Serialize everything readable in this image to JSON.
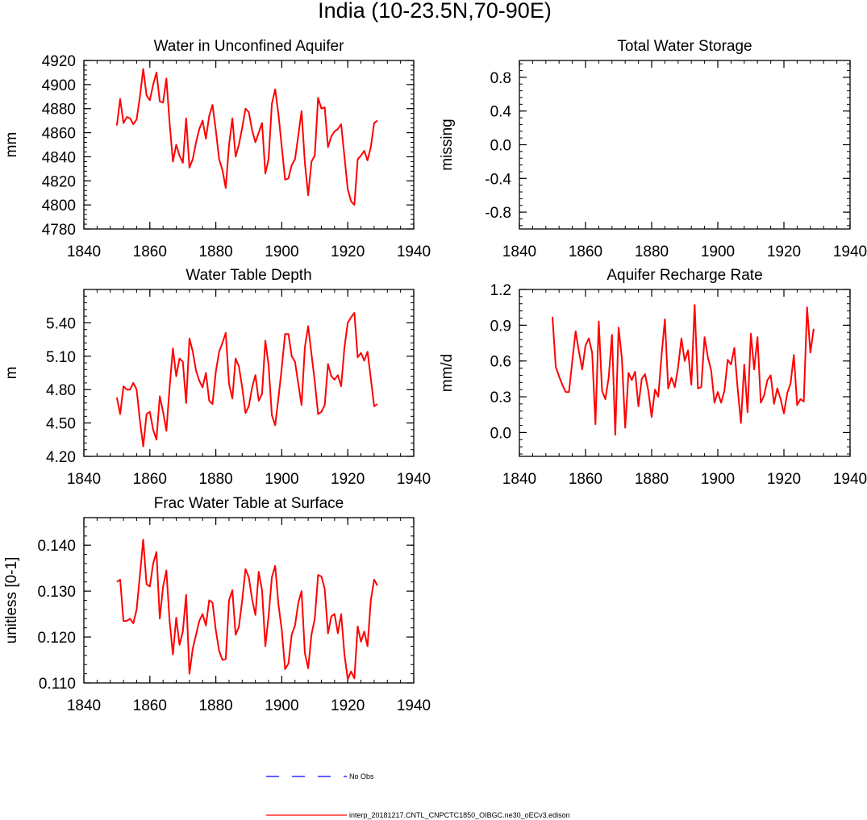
{
  "figure": {
    "title": "India (10-23.5N,70-90E)",
    "line_color": "#ff0000",
    "obs_color": "#0000ff"
  },
  "legend": {
    "obs_label": "No Obs",
    "model_label": "interp_20181217.CNTL_CNPCTC1850_OIBGC.ne30_oECv3.edison"
  },
  "chart_data": [
    {
      "type": "line",
      "title": "Water in Unconfined Aquifer",
      "xlabel": "",
      "ylabel": "mm",
      "xlim": [
        1840,
        1940
      ],
      "ylim": [
        4780,
        4920
      ],
      "xticks": [
        1840,
        1860,
        1880,
        1900,
        1920,
        1940
      ],
      "yticks": [
        4780,
        4800,
        4820,
        4840,
        4860,
        4880,
        4900,
        4920
      ],
      "ytick_labels": [
        "4780",
        "4800",
        "4820",
        "4840",
        "4860",
        "4880",
        "4900",
        "4920"
      ],
      "series": [
        {
          "name": "interp_20181217.CNTL_CNPCTC1850_OIBGC.ne30_oECv3.edison",
          "x_start": 1850,
          "x_step": 1,
          "values": [
            4866,
            4888,
            4868,
            4873,
            4872,
            4867,
            4871,
            4890,
            4913,
            4891,
            4887,
            4900,
            4910,
            4886,
            4885,
            4905,
            4868,
            4836,
            4850,
            4841,
            4835,
            4872,
            4831,
            4838,
            4852,
            4863,
            4870,
            4855,
            4874,
            4883,
            4862,
            4838,
            4829,
            4814,
            4850,
            4872,
            4840,
            4850,
            4864,
            4880,
            4877,
            4862,
            4852,
            4860,
            4868,
            4826,
            4838,
            4884,
            4896,
            4875,
            4848,
            4821,
            4822,
            4833,
            4838,
            4858,
            4878,
            4835,
            4808,
            4836,
            4841,
            4889,
            4880,
            4881,
            4848,
            4857,
            4861,
            4863,
            4867,
            4840,
            4813,
            4803,
            4800,
            4838,
            4841,
            4845,
            4837,
            4848,
            4868,
            4870
          ]
        }
      ]
    },
    {
      "type": "line",
      "title": "Total Water Storage",
      "xlabel": "",
      "ylabel": "missing",
      "xlim": [
        1840,
        1940
      ],
      "ylim": [
        -1,
        1
      ],
      "xticks": [
        1840,
        1860,
        1880,
        1900,
        1920,
        1940
      ],
      "yticks": [
        -0.8,
        -0.4,
        0.0,
        0.4,
        0.8
      ],
      "ytick_labels": [
        "-0.8",
        "-0.4",
        "0.0",
        "0.4",
        "0.8"
      ],
      "series": []
    },
    {
      "type": "line",
      "title": "Water Table Depth",
      "xlabel": "",
      "ylabel": "m",
      "xlim": [
        1840,
        1940
      ],
      "ylim": [
        4.2,
        5.7
      ],
      "xticks": [
        1840,
        1860,
        1880,
        1900,
        1920,
        1940
      ],
      "yticks": [
        4.2,
        4.5,
        4.8,
        5.1,
        5.4
      ],
      "ytick_labels": [
        "4.20",
        "4.50",
        "4.80",
        "5.10",
        "5.40"
      ],
      "series": [
        {
          "name": "interp_20181217.CNTL_CNPCTC1850_OIBGC.ne30_oECv3.edison",
          "x_start": 1850,
          "x_step": 1,
          "values": [
            4.73,
            4.58,
            4.83,
            4.8,
            4.8,
            4.86,
            4.8,
            4.52,
            4.29,
            4.58,
            4.6,
            4.44,
            4.35,
            4.74,
            4.6,
            4.43,
            4.82,
            5.17,
            4.92,
            5.08,
            5.05,
            4.68,
            5.26,
            5.14,
            4.97,
            4.88,
            4.82,
            4.95,
            4.7,
            4.67,
            4.96,
            5.14,
            5.22,
            5.31,
            4.85,
            4.72,
            5.08,
            5.01,
            4.82,
            4.59,
            4.65,
            4.82,
            4.93,
            4.7,
            4.76,
            5.24,
            5.02,
            4.57,
            4.48,
            4.73,
            5.0,
            5.3,
            5.3,
            5.1,
            5.05,
            4.85,
            4.66,
            5.18,
            5.37,
            5.12,
            4.87,
            4.58,
            4.6,
            4.66,
            5.03,
            4.92,
            4.89,
            4.93,
            4.83,
            5.18,
            5.4,
            5.45,
            5.49,
            5.09,
            5.13,
            5.06,
            5.14,
            4.9,
            4.65,
            4.67
          ]
        }
      ]
    },
    {
      "type": "line",
      "title": "Aquifer Recharge Rate",
      "xlabel": "",
      "ylabel": "mm/d",
      "xlim": [
        1840,
        1940
      ],
      "ylim": [
        -0.2,
        1.2
      ],
      "xticks": [
        1840,
        1860,
        1880,
        1900,
        1920,
        1940
      ],
      "yticks": [
        0.0,
        0.3,
        0.6,
        0.9,
        1.2
      ],
      "ytick_labels": [
        "0.0",
        "0.3",
        "0.6",
        "0.9",
        "1.2"
      ],
      "series": [
        {
          "name": "interp_20181217.CNTL_CNPCTC1850_OIBGC.ne30_oECv3.edison",
          "x_start": 1850,
          "x_step": 1,
          "values": [
            0.97,
            0.55,
            0.47,
            0.4,
            0.34,
            0.34,
            0.6,
            0.85,
            0.68,
            0.53,
            0.73,
            0.79,
            0.67,
            0.07,
            0.93,
            0.35,
            0.28,
            0.46,
            0.82,
            -0.02,
            0.88,
            0.62,
            0.04,
            0.5,
            0.44,
            0.51,
            0.22,
            0.45,
            0.49,
            0.35,
            0.13,
            0.36,
            0.3,
            0.65,
            0.95,
            0.37,
            0.46,
            0.38,
            0.55,
            0.79,
            0.6,
            0.69,
            0.4,
            1.07,
            0.37,
            0.38,
            0.8,
            0.63,
            0.52,
            0.25,
            0.34,
            0.25,
            0.35,
            0.61,
            0.57,
            0.71,
            0.37,
            0.08,
            0.57,
            0.17,
            0.83,
            0.53,
            0.8,
            0.25,
            0.31,
            0.44,
            0.48,
            0.24,
            0.37,
            0.28,
            0.16,
            0.33,
            0.41,
            0.65,
            0.23,
            0.28,
            0.26,
            1.05,
            0.67,
            0.87
          ]
        }
      ]
    },
    {
      "type": "line",
      "title": "Frac Water Table at Surface",
      "xlabel": "",
      "ylabel": "unitless [0-1]",
      "xlim": [
        1840,
        1940
      ],
      "ylim": [
        0.11,
        0.146
      ],
      "xticks": [
        1840,
        1860,
        1880,
        1900,
        1920,
        1940
      ],
      "yticks": [
        0.11,
        0.12,
        0.13,
        0.14
      ],
      "ytick_labels": [
        "0.110",
        "0.120",
        "0.130",
        "0.140"
      ],
      "series": [
        {
          "name": "interp_20181217.CNTL_CNPCTC1850_OIBGC.ne30_oECv3.edison",
          "x_start": 1850,
          "x_step": 1,
          "values": [
            0.132,
            0.1325,
            0.1235,
            0.1235,
            0.124,
            0.123,
            0.126,
            0.1335,
            0.1412,
            0.1315,
            0.131,
            0.136,
            0.1385,
            0.124,
            0.131,
            0.1345,
            0.1235,
            0.1162,
            0.1242,
            0.1183,
            0.1212,
            0.1292,
            0.112,
            0.1175,
            0.1205,
            0.1235,
            0.125,
            0.1225,
            0.128,
            0.1275,
            0.1215,
            0.117,
            0.115,
            0.1152,
            0.128,
            0.1302,
            0.1205,
            0.1222,
            0.128,
            0.1348,
            0.133,
            0.1282,
            0.1248,
            0.1342,
            0.1302,
            0.118,
            0.1245,
            0.133,
            0.1355,
            0.127,
            0.1215,
            0.113,
            0.1142,
            0.1205,
            0.1225,
            0.1275,
            0.13,
            0.1165,
            0.1132,
            0.1205,
            0.124,
            0.1335,
            0.1332,
            0.1305,
            0.1208,
            0.1245,
            0.125,
            0.1208,
            0.125,
            0.1162,
            0.1108,
            0.1125,
            0.111,
            0.1223,
            0.119,
            0.1212,
            0.118,
            0.128,
            0.1325,
            0.1312
          ]
        }
      ]
    }
  ]
}
